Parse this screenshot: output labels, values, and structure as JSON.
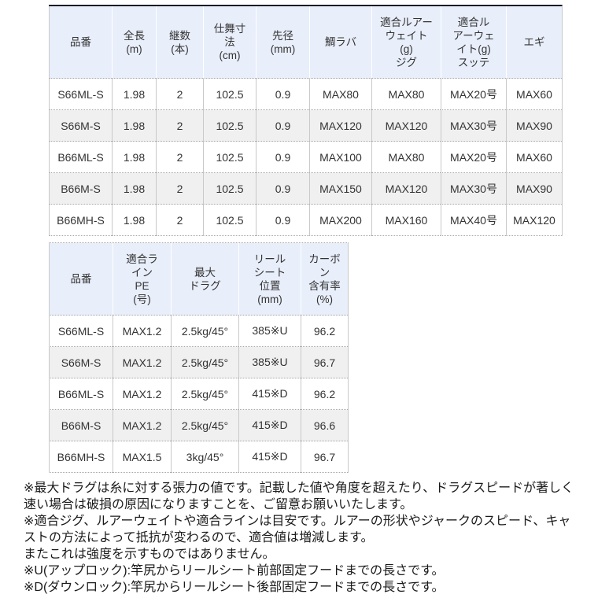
{
  "colors": {
    "header_bg": "#e8eefa",
    "alt_row_bg": "#f0f0f0",
    "table1_top_border": "#1b1b26",
    "grid_line": "#c9c9c9",
    "text": "#333333"
  },
  "table1": {
    "headers": [
      "品番",
      "全長\n(m)",
      "継数\n(本)",
      "仕舞寸\n法\n(cm)",
      "先径\n(mm)",
      "鯛ラバ",
      "適合ルアー\nウェイト\n(g)\nジグ",
      "適合ル\nアーウェ\nイト(g)\nスッテ",
      "エギ"
    ],
    "rows": [
      [
        "S66ML-S",
        "1.98",
        "2",
        "102.5",
        "0.9",
        "MAX80",
        "MAX80",
        "MAX20号",
        "MAX60"
      ],
      [
        "S66M-S",
        "1.98",
        "2",
        "102.5",
        "0.9",
        "MAX120",
        "MAX120",
        "MAX30号",
        "MAX90"
      ],
      [
        "B66ML-S",
        "1.98",
        "2",
        "102.5",
        "0.9",
        "MAX100",
        "MAX80",
        "MAX20号",
        "MAX60"
      ],
      [
        "B66M-S",
        "1.98",
        "2",
        "102.5",
        "0.9",
        "MAX150",
        "MAX120",
        "MAX30号",
        "MAX90"
      ],
      [
        "B66MH-S",
        "1.98",
        "2",
        "102.5",
        "0.9",
        "MAX200",
        "MAX160",
        "MAX40号",
        "MAX120"
      ]
    ]
  },
  "table2": {
    "headers": [
      "品番",
      "適合ラ\nイン\nPE\n(号)",
      "最大\nドラグ",
      "リール\nシート\n位置\n(mm)",
      "カーボ\nン\n含有率\n(%)"
    ],
    "rows": [
      [
        "S66ML-S",
        "MAX1.2",
        "2.5kg/45°",
        "385※U",
        "96.2"
      ],
      [
        "S66M-S",
        "MAX1.2",
        "2.5kg/45°",
        "385※U",
        "96.7"
      ],
      [
        "B66ML-S",
        "MAX1.2",
        "2.5kg/45°",
        "415※D",
        "96.2"
      ],
      [
        "B66M-S",
        "MAX1.2",
        "2.5kg/45°",
        "415※D",
        "96.6"
      ],
      [
        "B66MH-S",
        "MAX1.5",
        "3kg/45°",
        "415※D",
        "96.7"
      ]
    ]
  },
  "footnotes": [
    "※最大ドラグは糸に対する張力の値です。記載した値や角度を超えたり、ドラグスピードが著しく速い場合は破損の原因になりますことを、ご留意お願いいたします。",
    "※適合ジグ、ルアーウェイトや適合ラインは目安です。ルアーの形状やジャークのスピード、キャストの方法によって抵抗が変わるので、適合値は増減します。",
    "またこれは強度を示すものではありません。",
    "※U(アップロック):竿尻からリールシート前部固定フードまでの長さです。",
    "※D(ダウンロック):竿尻からリールシート後部固定フードまでの長さです。"
  ]
}
